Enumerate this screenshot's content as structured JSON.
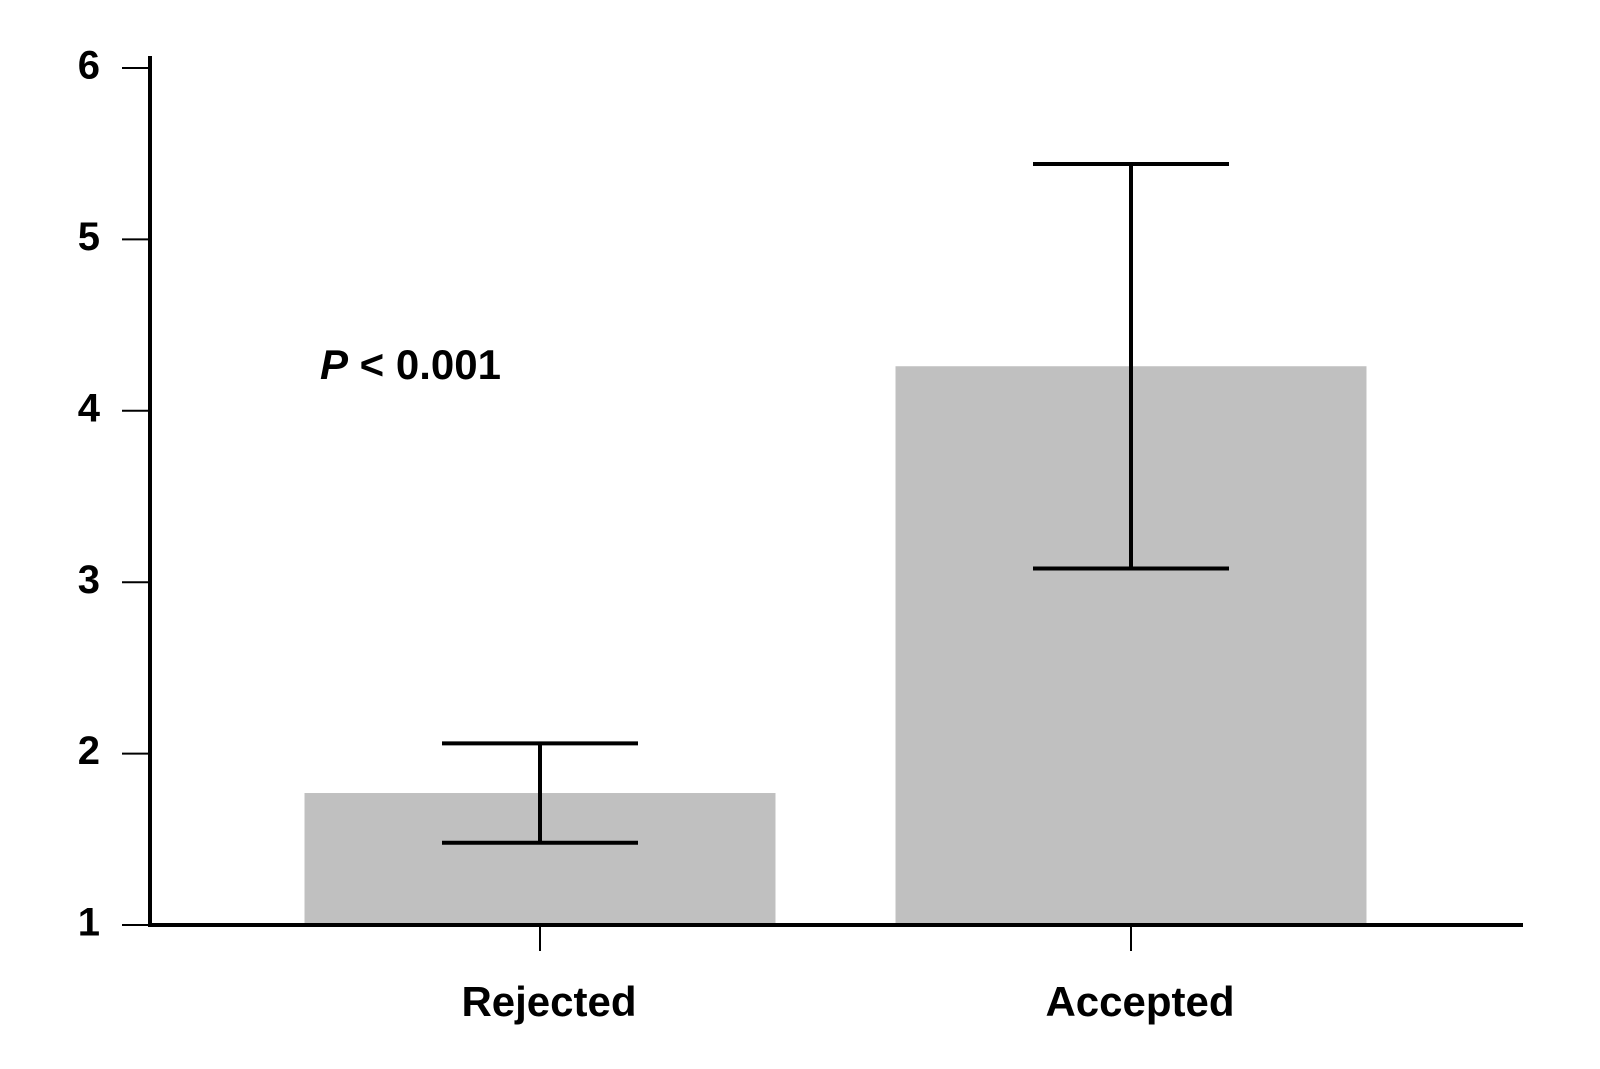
{
  "chart_data": {
    "type": "bar",
    "annotation": "P < 0.001",
    "categories": [
      "Rejected",
      "Accepted"
    ],
    "values": [
      1.77,
      4.26
    ],
    "errors": [
      0.29,
      1.18
    ],
    "color": "#c0c0c0",
    "ylim": [
      1,
      6
    ],
    "yticks": [
      1,
      2,
      3,
      4,
      5,
      6
    ],
    "grid": false
  }
}
